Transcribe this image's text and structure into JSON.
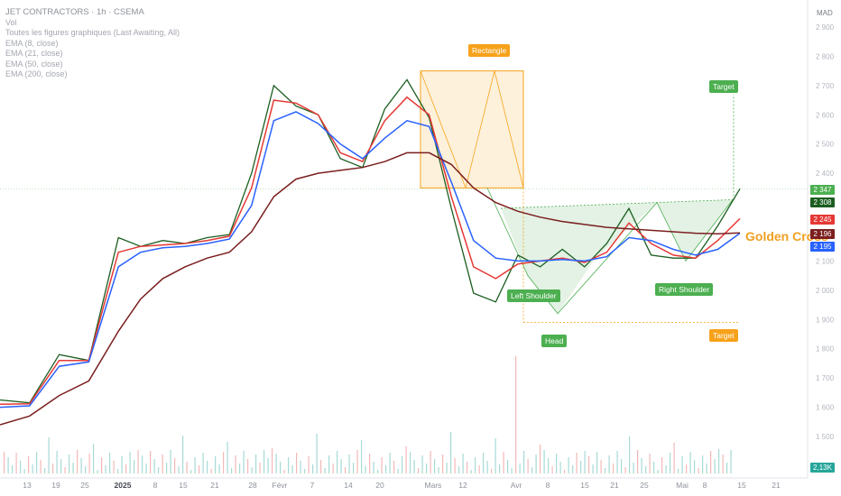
{
  "legend": {
    "title": "JET CONTRACTORS · 1h · CSEMA",
    "lines": [
      "Vol",
      "Toutes les figures graphiques (Last Awaiting, All)",
      "EMA (8, close)",
      "EMA (21, close)",
      "EMA (50, close)",
      "EMA (200, close)"
    ]
  },
  "currency": "MAD",
  "annotations": {
    "rectangle": "Rectangle",
    "target_top": "Target",
    "target_bottom": "Target",
    "left_shoulder": "Left Shoulder",
    "head": "Head",
    "right_shoulder": "Right Shoulder",
    "golden_cross": "Golden Cross"
  },
  "price_tags": [
    {
      "label": "2 347",
      "color": "#4caf50"
    },
    {
      "label": "2 308",
      "color": "#1b5e20"
    },
    {
      "label": "2 245",
      "color": "#e53935"
    },
    {
      "label": "2 196",
      "color": "#7b1f1f"
    },
    {
      "label": "2 195",
      "color": "#2962ff"
    },
    {
      "label": "2,13K",
      "color": "#26a69a"
    }
  ],
  "chart_data": {
    "type": "line",
    "y_axis": {
      "ticks": [
        1500,
        1600,
        1700,
        1800,
        1900,
        2000,
        2100,
        2200,
        2300,
        2400,
        2500,
        2600,
        2700,
        2800,
        2900
      ],
      "range": [
        1440,
        2950
      ]
    },
    "x_axis": {
      "ticks": [
        "13",
        "19",
        "25",
        "2025",
        "8",
        "15",
        "21",
        "28",
        "Févr",
        "7",
        "14",
        "20",
        "Mars",
        "12",
        "Avr",
        "8",
        "15",
        "21",
        "25",
        "Mai",
        "8",
        "15",
        "21"
      ]
    },
    "series": [
      {
        "color": "#1b5e20",
        "x": [
          0,
          4,
          8,
          12,
          16,
          19,
          22,
          25,
          28,
          31,
          34,
          37,
          40,
          43,
          46,
          49,
          52,
          55,
          58,
          61,
          64,
          67,
          70,
          73,
          76,
          79,
          82,
          85,
          88,
          91,
          94,
          97,
          100
        ],
        "y": [
          1625,
          1615,
          1780,
          1760,
          2180,
          2150,
          2170,
          2160,
          2180,
          2190,
          2400,
          2700,
          2630,
          2600,
          2450,
          2420,
          2620,
          2720,
          2590,
          2280,
          1990,
          1960,
          2120,
          2080,
          2140,
          2080,
          2160,
          2280,
          2120,
          2110,
          2110,
          2220,
          2347
        ]
      },
      {
        "color": "#e53935",
        "x": [
          0,
          4,
          8,
          12,
          16,
          19,
          22,
          25,
          28,
          31,
          34,
          37,
          40,
          43,
          46,
          49,
          52,
          55,
          58,
          61,
          64,
          67,
          70,
          73,
          76,
          79,
          82,
          85,
          88,
          91,
          94,
          97,
          100
        ],
        "y": [
          1610,
          1612,
          1760,
          1760,
          2130,
          2150,
          2155,
          2160,
          2170,
          2185,
          2350,
          2650,
          2640,
          2600,
          2470,
          2440,
          2580,
          2660,
          2600,
          2320,
          2080,
          2040,
          2090,
          2100,
          2110,
          2095,
          2130,
          2230,
          2160,
          2120,
          2110,
          2170,
          2245
        ]
      },
      {
        "color": "#2962ff",
        "x": [
          0,
          4,
          8,
          12,
          16,
          19,
          22,
          25,
          28,
          31,
          34,
          37,
          40,
          43,
          46,
          49,
          52,
          55,
          58,
          61,
          64,
          67,
          70,
          73,
          76,
          79,
          82,
          85,
          88,
          91,
          94,
          97,
          100
        ],
        "y": [
          1600,
          1605,
          1740,
          1755,
          2080,
          2130,
          2145,
          2150,
          2160,
          2175,
          2290,
          2580,
          2610,
          2570,
          2500,
          2450,
          2520,
          2580,
          2560,
          2370,
          2170,
          2110,
          2100,
          2100,
          2105,
          2100,
          2115,
          2180,
          2170,
          2140,
          2120,
          2140,
          2195
        ]
      },
      {
        "color": "#7b1f1f",
        "x": [
          0,
          4,
          8,
          12,
          16,
          19,
          22,
          25,
          28,
          31,
          34,
          37,
          40,
          43,
          46,
          49,
          52,
          55,
          58,
          61,
          64,
          67,
          70,
          73,
          76,
          79,
          82,
          85,
          88,
          91,
          94,
          97,
          100
        ],
        "y": [
          1540,
          1570,
          1640,
          1690,
          1860,
          1970,
          2040,
          2080,
          2110,
          2130,
          2200,
          2320,
          2380,
          2400,
          2410,
          2420,
          2440,
          2470,
          2470,
          2430,
          2350,
          2300,
          2270,
          2250,
          2235,
          2225,
          2215,
          2210,
          2205,
          2200,
          2195,
          2193,
          2196
        ]
      }
    ]
  }
}
